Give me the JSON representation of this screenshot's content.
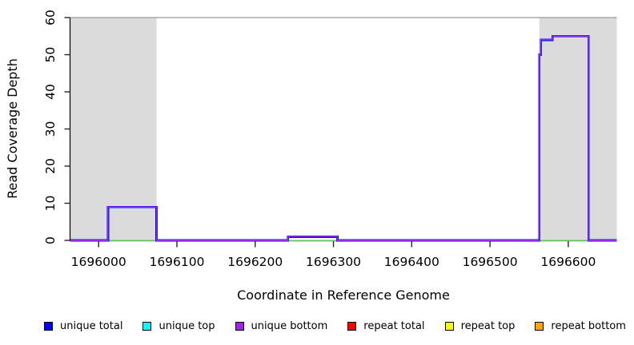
{
  "chart_data": {
    "type": "line",
    "title": "",
    "xlabel": "Coordinate in Reference Genome",
    "ylabel": "Read Coverage Depth",
    "xlim": [
      1695964,
      1696662
    ],
    "ylim": [
      0,
      60
    ],
    "x_ticks": [
      1696000,
      1696100,
      1696200,
      1696300,
      1696400,
      1696500,
      1696600
    ],
    "y_ticks": [
      0,
      10,
      20,
      30,
      40,
      50,
      60
    ],
    "grid": false,
    "shaded_regions": [
      {
        "x0": 1695964,
        "x1": 1696074,
        "color": "#DBDBDB"
      },
      {
        "x0": 1696563,
        "x1": 1696662,
        "color": "#DBDBDB"
      }
    ],
    "top_border_line": {
      "y": 60,
      "color": "#A8A8A8"
    },
    "series": [
      {
        "name": "baseline green",
        "color": "#64BE64",
        "width": 1.5,
        "points": [
          [
            1695964,
            0
          ],
          [
            1696662,
            0
          ]
        ]
      },
      {
        "name": "unique total",
        "color": "#0000FF",
        "width": 2.8,
        "points": [
          [
            1695964,
            0
          ],
          [
            1696012,
            0
          ],
          [
            1696012,
            9
          ],
          [
            1696074,
            9
          ],
          [
            1696074,
            0
          ],
          [
            1696242,
            0
          ],
          [
            1696242,
            1
          ],
          [
            1696305,
            1
          ],
          [
            1696305,
            0
          ],
          [
            1696563,
            0
          ],
          [
            1696563,
            50
          ],
          [
            1696565,
            50
          ],
          [
            1696565,
            54
          ],
          [
            1696580,
            54
          ],
          [
            1696580,
            55
          ],
          [
            1696626,
            55
          ],
          [
            1696626,
            0
          ],
          [
            1696662,
            0
          ]
        ]
      },
      {
        "name": "unique bottom",
        "color": "#8B30E8",
        "width": 1.6,
        "points": [
          [
            1695964,
            0
          ],
          [
            1696012,
            0
          ],
          [
            1696012,
            9
          ],
          [
            1696074,
            9
          ],
          [
            1696074,
            0
          ],
          [
            1696242,
            0
          ],
          [
            1696242,
            1
          ],
          [
            1696305,
            1
          ],
          [
            1696305,
            0
          ],
          [
            1696563,
            0
          ],
          [
            1696563,
            50
          ],
          [
            1696565,
            50
          ],
          [
            1696565,
            54
          ],
          [
            1696580,
            54
          ],
          [
            1696580,
            55
          ],
          [
            1696626,
            55
          ],
          [
            1696626,
            0
          ],
          [
            1696662,
            0
          ]
        ]
      }
    ],
    "legend_position": "bottom",
    "legend": [
      {
        "label": "unique total",
        "color": "#0000FF"
      },
      {
        "label": "unique top",
        "color": "#00FFFF"
      },
      {
        "label": "unique bottom",
        "color": "#A020F0"
      },
      {
        "label": "repeat total",
        "color": "#FF0000"
      },
      {
        "label": "repeat top",
        "color": "#FFFF00"
      },
      {
        "label": "repeat bottom",
        "color": "#FFA500"
      }
    ]
  }
}
